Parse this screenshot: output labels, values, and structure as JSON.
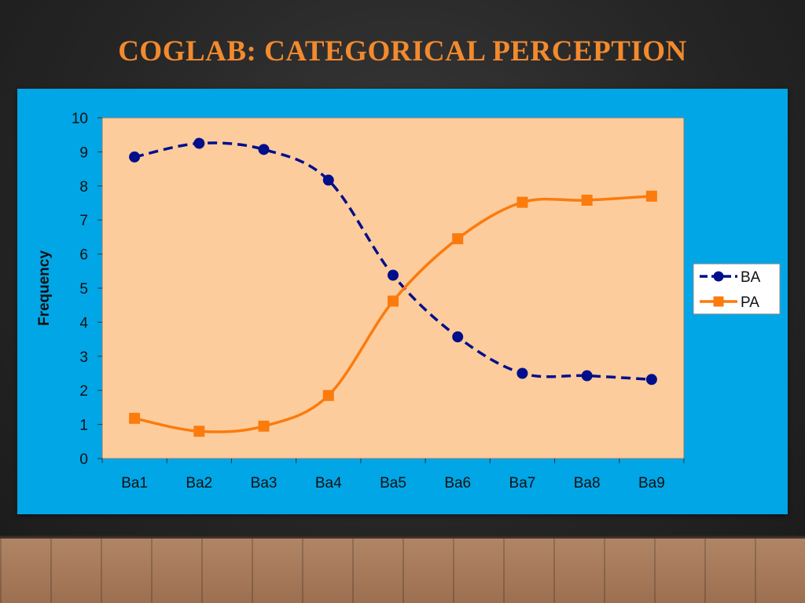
{
  "slide": {
    "title": "COGLAB: CATEGORICAL PERCEPTION"
  },
  "colors": {
    "panel": "#00a6e6",
    "plot_area": "#fdcc9c",
    "ba_series": "#000e8c",
    "pa_series": "#fb7b0d",
    "title": "#f28a2e"
  },
  "chart_data": {
    "type": "line",
    "categories": [
      "Ba1",
      "Ba2",
      "Ba3",
      "Ba4",
      "Ba5",
      "Ba6",
      "Ba7",
      "Ba8",
      "Ba9"
    ],
    "series": [
      {
        "name": "BA",
        "values": [
          8.85,
          9.25,
          9.07,
          8.17,
          5.38,
          3.57,
          2.5,
          2.43,
          2.32
        ],
        "marker": "circle",
        "line": "dashed"
      },
      {
        "name": "PA",
        "values": [
          1.18,
          0.8,
          0.95,
          1.85,
          4.62,
          6.45,
          7.52,
          7.58,
          7.7
        ],
        "marker": "square",
        "line": "solid"
      }
    ],
    "title": "",
    "xlabel": "",
    "ylabel": "Frequency",
    "ylim": [
      0,
      10
    ],
    "yticks": [
      "0",
      "1",
      "2",
      "3",
      "4",
      "5",
      "6",
      "7",
      "8",
      "9",
      "10"
    ],
    "grid": false,
    "smooth": true,
    "legend_position": "right"
  }
}
